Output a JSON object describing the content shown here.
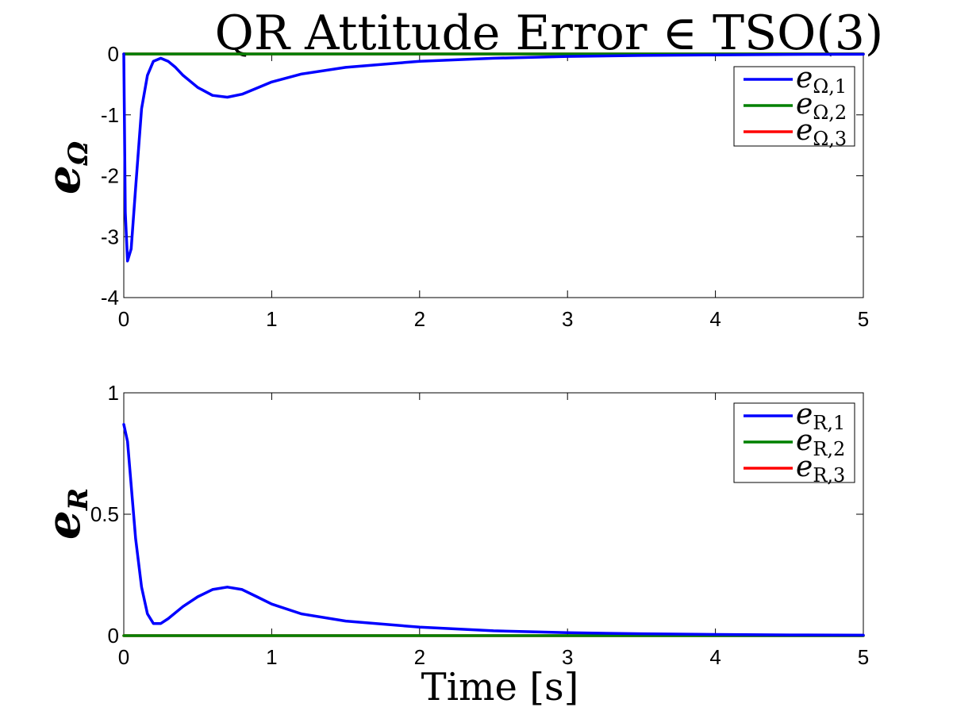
{
  "chart_data": [
    {
      "type": "line",
      "title": "QR Attitude Error ∈ TSO(3)",
      "ylabel": "eΩ",
      "xlabel": "",
      "xlim": [
        0,
        5
      ],
      "ylim": [
        -4,
        0
      ],
      "xticks": [
        0,
        1,
        2,
        3,
        4,
        5
      ],
      "xtick_labels": [
        "0",
        "1",
        "2",
        "3",
        "4",
        "5"
      ],
      "yticks": [
        -4,
        -3,
        -2,
        -1,
        0
      ],
      "ytick_labels": [
        "-4",
        "-3",
        "-2",
        "-1",
        "0"
      ],
      "grid": false,
      "legend": "top-right",
      "series": [
        {
          "name": "eΩ,1",
          "color": "#0000ff",
          "x": [
            0,
            0.01,
            0.025,
            0.05,
            0.08,
            0.12,
            0.16,
            0.2,
            0.25,
            0.3,
            0.35,
            0.4,
            0.5,
            0.6,
            0.7,
            0.8,
            0.9,
            1.0,
            1.2,
            1.5,
            2.0,
            2.5,
            3.0,
            3.5,
            4.0,
            4.5,
            5.0
          ],
          "y": [
            0,
            -2.6,
            -3.4,
            -3.2,
            -2.2,
            -0.9,
            -0.35,
            -0.12,
            -0.07,
            -0.12,
            -0.22,
            -0.35,
            -0.55,
            -0.68,
            -0.71,
            -0.66,
            -0.56,
            -0.46,
            -0.33,
            -0.22,
            -0.12,
            -0.07,
            -0.04,
            -0.025,
            -0.015,
            -0.008,
            -0.005
          ]
        },
        {
          "name": "eΩ,2",
          "color": "#008000",
          "x": [
            0,
            5
          ],
          "y": [
            0,
            0
          ]
        },
        {
          "name": "eΩ,3",
          "color": "#ff0000",
          "x": [
            0,
            5
          ],
          "y": [
            0,
            0
          ]
        }
      ]
    },
    {
      "type": "line",
      "title": "",
      "ylabel": "eR",
      "xlabel": "Time [s]",
      "xlim": [
        0,
        5
      ],
      "ylim": [
        0,
        1
      ],
      "xticks": [
        0,
        1,
        2,
        3,
        4,
        5
      ],
      "xtick_labels": [
        "0",
        "1",
        "2",
        "3",
        "4",
        "5"
      ],
      "yticks": [
        0,
        0.5,
        1
      ],
      "ytick_labels": [
        "0",
        "0.5",
        "1"
      ],
      "grid": false,
      "legend": "top-right",
      "series": [
        {
          "name": "eR,1",
          "color": "#0000ff",
          "x": [
            0,
            0.025,
            0.05,
            0.08,
            0.12,
            0.16,
            0.2,
            0.25,
            0.3,
            0.4,
            0.5,
            0.6,
            0.7,
            0.8,
            0.9,
            1.0,
            1.2,
            1.5,
            2.0,
            2.5,
            3.0,
            3.5,
            4.0,
            4.5,
            5.0
          ],
          "y": [
            0.87,
            0.8,
            0.62,
            0.4,
            0.2,
            0.09,
            0.05,
            0.05,
            0.07,
            0.12,
            0.16,
            0.19,
            0.2,
            0.19,
            0.16,
            0.13,
            0.09,
            0.06,
            0.035,
            0.02,
            0.012,
            0.008,
            0.005,
            0.003,
            0.002
          ]
        },
        {
          "name": "eR,2",
          "color": "#008000",
          "x": [
            0,
            5
          ],
          "y": [
            0,
            0
          ]
        },
        {
          "name": "eR,3",
          "color": "#ff0000",
          "x": [
            0,
            5
          ],
          "y": [
            0,
            0
          ]
        }
      ]
    }
  ]
}
